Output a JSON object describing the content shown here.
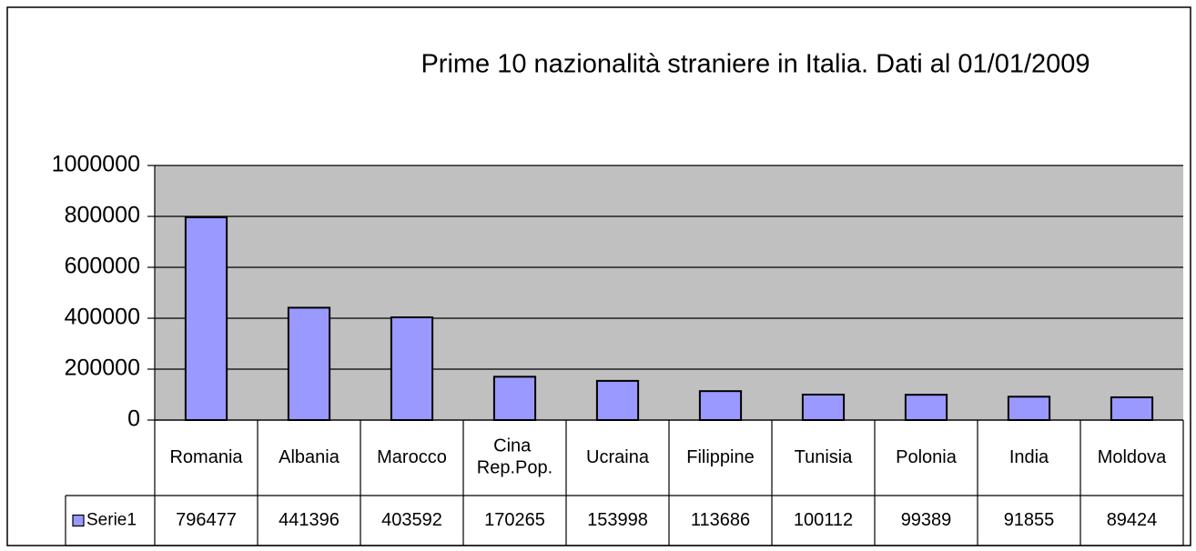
{
  "chart_data": {
    "type": "bar",
    "title": "Prime 10 nazionalità straniere in Italia. Dati al 01/01/2009",
    "categories": [
      "Romania",
      "Albania",
      "Marocco",
      "Cina Rep.Pop.",
      "Ucraina",
      "Filippine",
      "Tunisia",
      "Polonia",
      "India",
      "Moldova"
    ],
    "series": [
      {
        "name": "Serie1",
        "color": "#9999ff",
        "values": [
          796477,
          441396,
          403592,
          170265,
          153998,
          113686,
          100112,
          99389,
          91855,
          89424
        ]
      }
    ],
    "ylim": [
      0,
      1000000
    ],
    "yticks": [
      0,
      200000,
      400000,
      600000,
      800000,
      1000000
    ],
    "grid": true,
    "data_table": true
  }
}
